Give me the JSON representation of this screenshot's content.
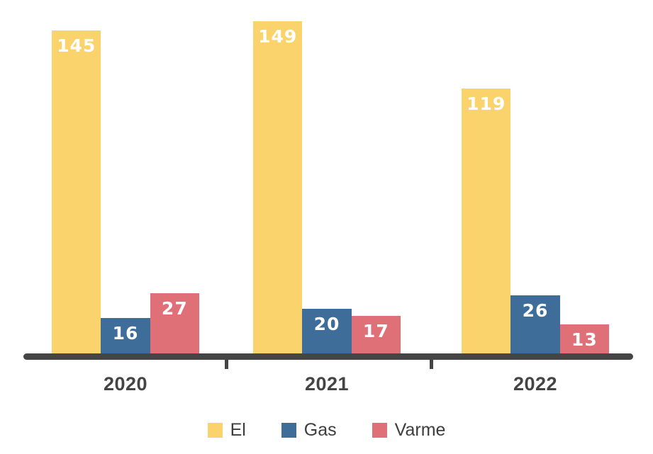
{
  "chart_data": {
    "type": "bar",
    "title": "",
    "xlabel": "",
    "ylabel": "",
    "categories": [
      "2020",
      "2021",
      "2022"
    ],
    "series": [
      {
        "name": "El",
        "color": "#FAD36C",
        "values": [
          145,
          149,
          119
        ]
      },
      {
        "name": "Gas",
        "color": "#3F6D99",
        "values": [
          16,
          20,
          26
        ]
      },
      {
        "name": "Varme",
        "color": "#DF7077",
        "values": [
          27,
          17,
          13
        ]
      }
    ],
    "bar_value_labels": [
      [
        145,
        16,
        27
      ],
      [
        149,
        20,
        17
      ],
      [
        119,
        26,
        13
      ]
    ],
    "ylim": [
      0,
      155
    ],
    "grid": false,
    "legend_position": "bottom",
    "value_label_color": "#ffffff",
    "axis_color": "#454545",
    "category_label_color": "#444444",
    "legend_text_color": "#3d3d3d",
    "background_color": "#ffffff"
  },
  "legend": {
    "items": [
      {
        "label": "El",
        "color": "#FAD36C"
      },
      {
        "label": "Gas",
        "color": "#3F6D99"
      },
      {
        "label": "Varme",
        "color": "#DF7077"
      }
    ]
  }
}
